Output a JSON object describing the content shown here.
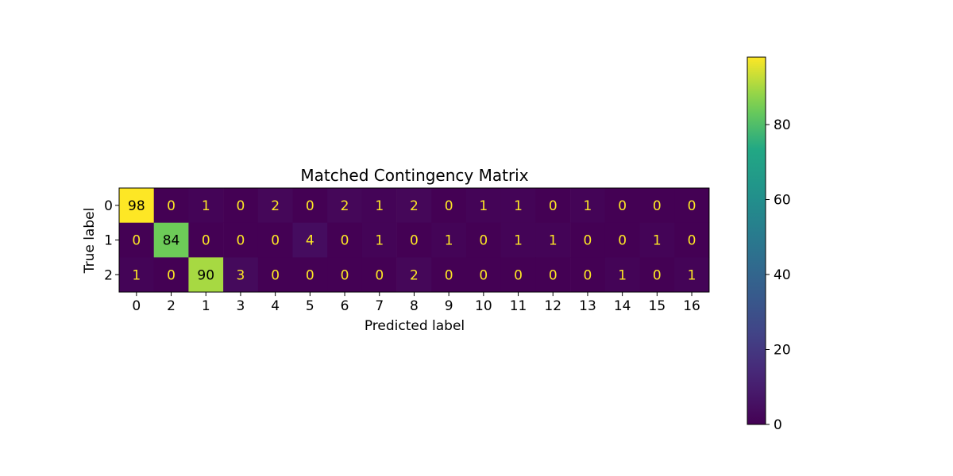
{
  "chart_data": {
    "type": "heatmap",
    "title": "Matched Contingency Matrix",
    "xlabel": "Predicted label",
    "ylabel": "True label",
    "x_tick_labels": [
      "0",
      "2",
      "1",
      "3",
      "4",
      "5",
      "6",
      "7",
      "8",
      "9",
      "10",
      "11",
      "12",
      "13",
      "14",
      "15",
      "16"
    ],
    "y_tick_labels": [
      "0",
      "1",
      "2"
    ],
    "values": [
      [
        98,
        0,
        1,
        0,
        2,
        0,
        2,
        1,
        2,
        0,
        1,
        1,
        0,
        1,
        0,
        0,
        0
      ],
      [
        0,
        84,
        0,
        0,
        0,
        4,
        0,
        1,
        0,
        1,
        0,
        1,
        1,
        0,
        0,
        1,
        0
      ],
      [
        1,
        0,
        90,
        3,
        0,
        0,
        0,
        0,
        2,
        0,
        0,
        0,
        0,
        0,
        1,
        0,
        1
      ]
    ],
    "colormap": "viridis",
    "value_range": [
      0,
      98
    ],
    "colorbar_ticks": [
      0,
      20,
      40,
      60,
      80
    ],
    "colorbar_position": "right",
    "text_colors": {
      "on_dark": "#fde725",
      "on_light": "#000000"
    }
  }
}
